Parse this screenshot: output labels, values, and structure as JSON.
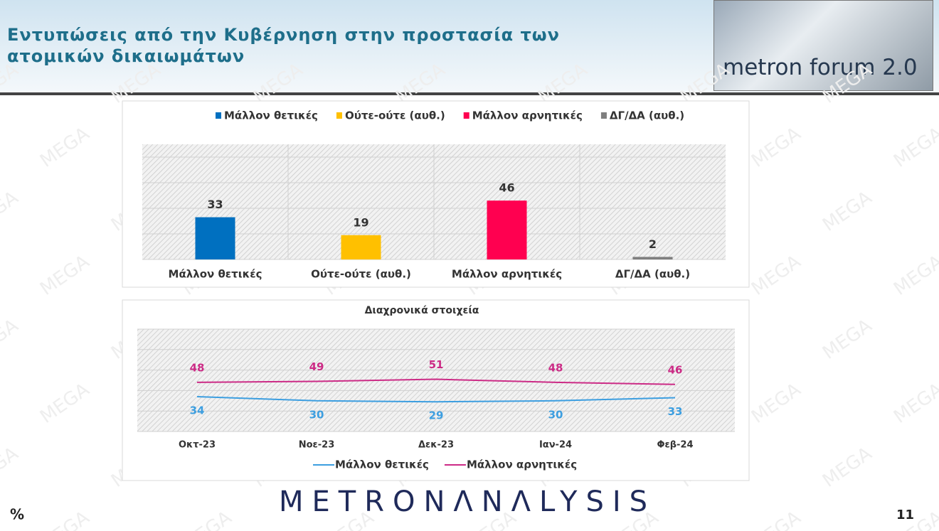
{
  "header": {
    "title": "Εντυπώσεις από την Κυβέρνηση στην προστασία των ατομικών δικαιωμάτων",
    "logo": "metron forum 2.0"
  },
  "watermark": "MEGA",
  "footer": {
    "brand": "METRONΛNΛLYSIS",
    "unit": "%",
    "page": "11"
  },
  "chart_data": [
    {
      "type": "bar",
      "categories": [
        "Μάλλον θετικές",
        "Ούτε-ούτε (αυθ.)",
        "Μάλλον αρνητικές",
        "ΔΓ/ΔΑ (αυθ.)"
      ],
      "values": [
        33,
        19,
        46,
        2
      ],
      "colors": [
        "#0070c0",
        "#ffc000",
        "#ff0050",
        "#7f7f7f"
      ],
      "ylim": [
        0,
        90
      ],
      "yticks": [
        0,
        20,
        40,
        60,
        80
      ],
      "grid": true,
      "legend": "top"
    },
    {
      "type": "line",
      "title": "Διαχρονικά στοιχεία",
      "categories": [
        "Οκτ-23",
        "Νοε-23",
        "Δεκ-23",
        "Ιαν-24",
        "Φεβ-24"
      ],
      "series": [
        {
          "name": "Μάλλον θετικές",
          "color": "#3c9ee0",
          "values": [
            34,
            30,
            29,
            30,
            33
          ]
        },
        {
          "name": "Μάλλον αρνητικές",
          "color": "#cc2b86",
          "values": [
            48,
            49,
            51,
            48,
            46
          ]
        }
      ],
      "ylim": [
        0,
        100
      ],
      "yticks": [
        0,
        20,
        40,
        60,
        80,
        100
      ],
      "grid": true,
      "legend": "bottom"
    }
  ]
}
